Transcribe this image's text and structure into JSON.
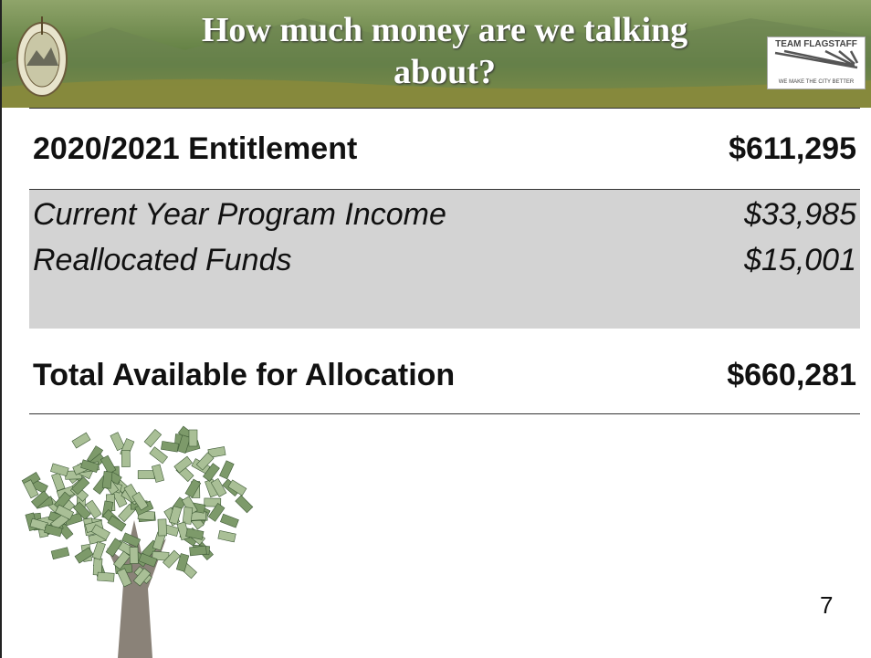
{
  "header": {
    "title": "How much money are we talking about?",
    "logo": {
      "name": "TEAM FLAGSTAFF",
      "tagline": "WE MAKE THE CITY BETTER"
    }
  },
  "table": {
    "rows": [
      [
        "2020/2021 Entitlement",
        "$611,295"
      ],
      [
        "Current Year Program Income",
        "$33,985"
      ],
      [
        "Reallocated Funds",
        "$15,001"
      ],
      [
        "Total Available for Allocation",
        "$660,281"
      ]
    ]
  },
  "page_number": "7"
}
